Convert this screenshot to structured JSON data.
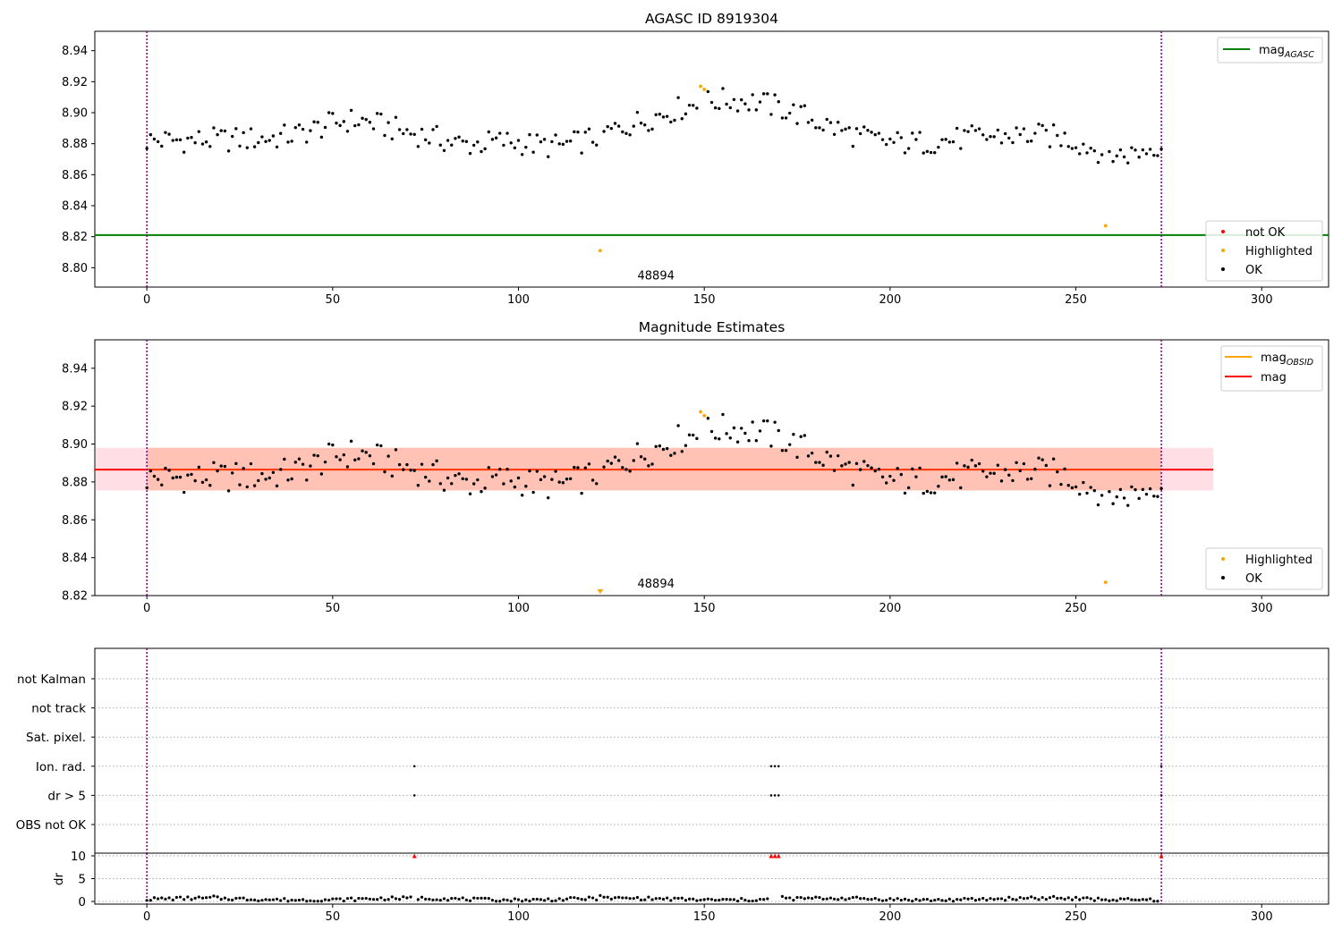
{
  "chart_data": [
    {
      "type": "scatter",
      "title": "AGASC ID 8919304",
      "xlim": [
        -14,
        318
      ],
      "ylim": [
        8.7875,
        8.9525
      ],
      "xticks": [
        0,
        50,
        100,
        150,
        200,
        250,
        300
      ],
      "xtick_labels": [
        "0",
        "50",
        "100",
        "150",
        "200",
        "250",
        "300"
      ],
      "yticks": [
        8.8,
        8.82,
        8.84,
        8.86,
        8.88,
        8.9,
        8.92,
        8.94
      ],
      "ytick_labels": [
        "8.80",
        "8.82",
        "8.84",
        "8.86",
        "8.88",
        "8.90",
        "8.92",
        "8.94"
      ],
      "vlines": [
        0,
        273
      ],
      "hline": {
        "value": 8.821,
        "color": "#008000"
      },
      "annotation": {
        "text": "48894",
        "x": 137,
        "y": 8.789
      },
      "highlighted": [
        [
          122,
          8.811
        ],
        [
          149,
          8.917
        ],
        [
          150,
          8.915
        ],
        [
          258,
          8.827
        ]
      ],
      "legend_top": [
        {
          "label": "mag",
          "sub": "AGASC",
          "color": "#008000"
        }
      ],
      "legend_bottom": [
        {
          "label": "not OK",
          "color": "#ff0000"
        },
        {
          "label": "Highlighted",
          "color": "#ffa500"
        },
        {
          "label": "OK",
          "color": "#000000"
        }
      ]
    },
    {
      "type": "scatter",
      "title": "Magnitude Estimates",
      "xlim": [
        -14,
        318
      ],
      "ylim": [
        8.82,
        8.955
      ],
      "xticks": [
        0,
        50,
        100,
        150,
        200,
        250,
        300
      ],
      "xtick_labels": [
        "0",
        "50",
        "100",
        "150",
        "200",
        "250",
        "300"
      ],
      "yticks": [
        8.82,
        8.84,
        8.86,
        8.88,
        8.9,
        8.92,
        8.94
      ],
      "ytick_labels": [
        "8.82",
        "8.84",
        "8.86",
        "8.88",
        "8.90",
        "8.92",
        "8.94"
      ],
      "vlines": [
        0,
        273
      ],
      "mag": 8.8865,
      "band_obsid": [
        8.8755,
        8.898
      ],
      "band_mag": [
        8.8755,
        8.898
      ],
      "band_xrange": [
        -14,
        287
      ],
      "annotation": {
        "text": "48894",
        "x": 137,
        "y": 8.8215
      },
      "highlighted": [
        [
          149,
          8.917
        ],
        [
          150,
          8.915
        ],
        [
          258,
          8.827
        ]
      ],
      "offscale_marker": {
        "x": 122,
        "y": 8.8215
      },
      "legend_top": [
        {
          "label": "mag",
          "sub": "OBSID",
          "color": "#ffa500"
        },
        {
          "label": "mag",
          "sub": "",
          "color": "#ff0000"
        }
      ],
      "legend_bottom": [
        {
          "label": "Highlighted",
          "color": "#ffa500"
        },
        {
          "label": "OK",
          "color": "#000000"
        }
      ]
    },
    {
      "type": "scatter",
      "title": "",
      "xlim": [
        -14,
        318
      ],
      "xticks": [
        0,
        50,
        100,
        150,
        200,
        250,
        300
      ],
      "xtick_labels": [
        "0",
        "50",
        "100",
        "150",
        "200",
        "250",
        "300"
      ],
      "vlines": [
        0,
        273
      ],
      "flag_categories": [
        "not Kalman",
        "not track",
        "Sat. pixel.",
        "Ion. rad.",
        "dr > 5",
        "OBS not OK"
      ],
      "flags": {
        "Ion. rad.": [
          72,
          168,
          169,
          170,
          273
        ],
        "dr > 5": [
          72,
          168,
          169,
          170,
          273
        ]
      },
      "dr_ylim": [
        0,
        10
      ],
      "dr_yticks": [
        0,
        5,
        10
      ],
      "dr_ytick_labels": [
        "0",
        "5",
        "10"
      ],
      "dr_ylabel": "dr",
      "dr_clipped": [
        72,
        168,
        169,
        170,
        273
      ],
      "dr_spikes": [
        [
          18,
          1.2
        ],
        [
          122,
          1.3
        ],
        [
          171,
          1.1
        ],
        [
          238,
          1.0
        ],
        [
          244,
          1.1
        ]
      ]
    }
  ]
}
